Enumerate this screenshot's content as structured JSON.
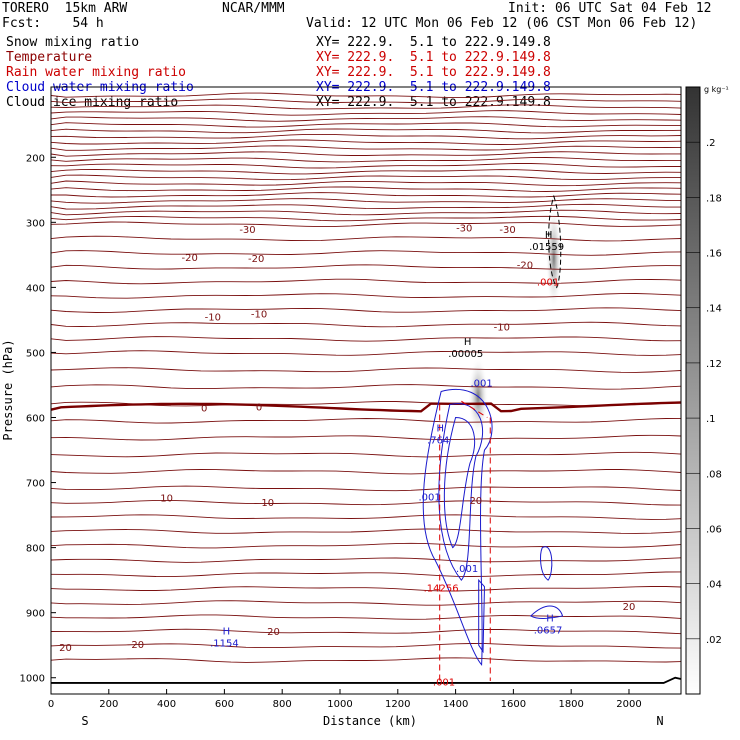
{
  "header": {
    "model_name": "TORERO  15km ARW",
    "center": "NCAR/MMM",
    "init": "Init: 06 UTC Sat 04 Feb 12",
    "fcst": "Fcst:    54 h",
    "valid": "Valid: 12 UTC Mon 06 Feb 12 (06 CST Mon 06 Feb 12)"
  },
  "fields": [
    {
      "name": "Snow mixing ratio",
      "xy": "XY= 222.9.  5.1 to 222.9.149.8",
      "color": "#000000"
    },
    {
      "name": "Temperature",
      "xy": "XY= 222.9.  5.1 to 222.9.149.8",
      "color": "#8b0000"
    },
    {
      "name": "Rain water mixing ratio",
      "xy": "XY= 222.9.  5.1 to 222.9.149.8",
      "color": "#cc0000"
    },
    {
      "name": "Cloud water mixing ratio",
      "xy": "XY= 222.9.  5.1 to 222.9.149.8",
      "color": "#0000cc"
    },
    {
      "name": "Cloud ice mixing ratio",
      "xy": "XY= 222.9.  5.1 to 222.9.149.8",
      "color": "#000000"
    }
  ],
  "colorbar": {
    "unit": "g kg⁻¹",
    "labels": [
      ".02",
      ".04",
      ".06",
      ".08",
      ".1",
      ".12",
      ".14",
      ".16",
      ".18",
      ".2"
    ],
    "values": [
      0.02,
      0.04,
      0.06,
      0.08,
      0.1,
      0.12,
      0.14,
      0.16,
      0.18,
      0.2
    ],
    "range": [
      0,
      0.22
    ]
  },
  "chart_data": {
    "type": "contour",
    "xlabel": "Distance (km)",
    "ylabel": "Pressure (hPa)",
    "x_ticks": [
      0,
      200,
      400,
      600,
      800,
      1000,
      1200,
      1400,
      1600,
      1800,
      2000
    ],
    "y_ticks": [
      200,
      300,
      400,
      500,
      600,
      700,
      800,
      900,
      1000
    ],
    "xlim": [
      0,
      2180
    ],
    "ylim": [
      1025,
      92
    ],
    "left_label": "S",
    "right_label": "N",
    "temperature_contour_labels": [
      {
        "text": "-30",
        "x": 680,
        "p": 310
      },
      {
        "text": "-30",
        "x": 1430,
        "p": 308
      },
      {
        "text": "-30",
        "x": 1580,
        "p": 310
      },
      {
        "text": "-20",
        "x": 480,
        "p": 353
      },
      {
        "text": "-20",
        "x": 710,
        "p": 355
      },
      {
        "text": "-20",
        "x": 1640,
        "p": 365
      },
      {
        "text": "-10",
        "x": 560,
        "p": 445
      },
      {
        "text": "-10",
        "x": 720,
        "p": 440
      },
      {
        "text": "-10",
        "x": 1560,
        "p": 460
      },
      {
        "text": "0",
        "x": 530,
        "p": 585
      },
      {
        "text": "0",
        "x": 720,
        "p": 583
      },
      {
        "text": "10",
        "x": 400,
        "p": 723
      },
      {
        "text": "10",
        "x": 750,
        "p": 730
      },
      {
        "text": "20",
        "x": 1470,
        "p": 727
      },
      {
        "text": "20",
        "x": 50,
        "p": 953
      },
      {
        "text": "20",
        "x": 300,
        "p": 948
      },
      {
        "text": "20",
        "x": 770,
        "p": 928
      },
      {
        "text": "20",
        "x": 2000,
        "p": 890
      }
    ],
    "extrema_labels": [
      {
        "marker": "H",
        "value": ".01559",
        "x": 1715,
        "p": 330,
        "field": "Snow mixing ratio"
      },
      {
        "marker": "H",
        "value": ".00005",
        "x": 1435,
        "p": 495,
        "field": "Cloud ice mixing ratio"
      },
      {
        "marker": "H",
        "value": ".764",
        "x": 1340,
        "p": 628,
        "field": "Cloud water mixing ratio"
      },
      {
        "marker": "H",
        "value": ".1154",
        "x": 600,
        "p": 940,
        "field": "Cloud water mixing ratio"
      },
      {
        "marker": "H",
        "value": ".0657",
        "x": 1720,
        "p": 920,
        "field": "Cloud water mixing ratio"
      },
      {
        "marker": "",
        "value": ".14256",
        "x": 1350,
        "p": 855,
        "field": "Rain water mixing ratio"
      },
      {
        "marker": "",
        "value": ".001",
        "x": 1720,
        "p": 385,
        "field": "Rain water mixing ratio"
      },
      {
        "marker": "",
        "value": ".001",
        "x": 1490,
        "p": 540,
        "field": "Cloud water mixing ratio"
      },
      {
        "marker": "",
        "value": ".001",
        "x": 1310,
        "p": 715,
        "field": "Cloud water mixing ratio"
      },
      {
        "marker": "",
        "value": ".001",
        "x": 1440,
        "p": 825,
        "field": "Cloud water mixing ratio"
      },
      {
        "marker": "",
        "value": ".001",
        "x": 1360,
        "p": 1000,
        "field": "Rain water mixing ratio"
      }
    ]
  }
}
